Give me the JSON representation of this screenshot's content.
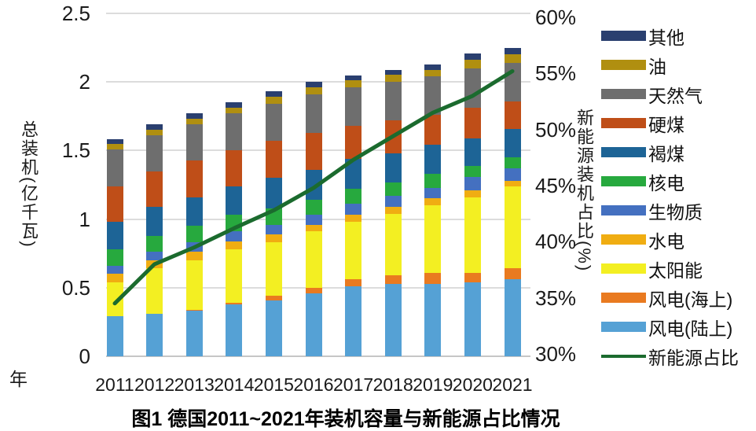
{
  "figure": {
    "caption": "图1  德国2011~2021年装机容量与新能源占比情况"
  },
  "chart_data": {
    "type": "bar",
    "subtype": "stacked-bars-with-line-overlay",
    "title": "图1  德国2011~2021年装机容量与新能源占比情况",
    "categories": [
      "2011",
      "2012",
      "2013",
      "2014",
      "2015",
      "2016",
      "2017",
      "2018",
      "2019",
      "2020",
      "2021"
    ],
    "stack_note": "series listed in legend order (top of bar first); values in 亿千瓦",
    "series": [
      {
        "name": "其他",
        "color": "#2a3f6f",
        "values": [
          0.03,
          0.04,
          0.04,
          0.04,
          0.04,
          0.04,
          0.04,
          0.04,
          0.04,
          0.05,
          0.05
        ]
      },
      {
        "name": "油",
        "color": "#b08f10",
        "values": [
          0.04,
          0.04,
          0.04,
          0.04,
          0.05,
          0.05,
          0.05,
          0.05,
          0.05,
          0.06,
          0.06
        ]
      },
      {
        "name": "天然气",
        "color": "#6e6e6e",
        "values": [
          0.27,
          0.26,
          0.26,
          0.27,
          0.27,
          0.28,
          0.28,
          0.28,
          0.28,
          0.29,
          0.28
        ]
      },
      {
        "name": "硬煤",
        "color": "#bf4e18",
        "values": [
          0.26,
          0.26,
          0.27,
          0.26,
          0.27,
          0.27,
          0.24,
          0.24,
          0.22,
          0.22,
          0.2
        ]
      },
      {
        "name": "褐煤",
        "color": "#1d6496",
        "values": [
          0.2,
          0.21,
          0.21,
          0.21,
          0.22,
          0.22,
          0.22,
          0.21,
          0.21,
          0.2,
          0.21
        ]
      },
      {
        "name": "核电",
        "color": "#27a93e",
        "values": [
          0.12,
          0.12,
          0.12,
          0.12,
          0.12,
          0.11,
          0.11,
          0.1,
          0.1,
          0.08,
          0.08
        ]
      },
      {
        "name": "生物质",
        "color": "#4470c0",
        "values": [
          0.06,
          0.06,
          0.07,
          0.07,
          0.07,
          0.07,
          0.08,
          0.08,
          0.08,
          0.1,
          0.09
        ]
      },
      {
        "name": "水电",
        "color": "#f0ad12",
        "values": [
          0.06,
          0.06,
          0.06,
          0.06,
          0.06,
          0.05,
          0.05,
          0.05,
          0.05,
          0.05,
          0.04
        ]
      },
      {
        "name": "太阳能",
        "color": "#f3ef22",
        "values": [
          0.25,
          0.33,
          0.36,
          0.39,
          0.39,
          0.41,
          0.42,
          0.45,
          0.49,
          0.55,
          0.6
        ]
      },
      {
        "name": "风电(海上)",
        "color": "#e97a20",
        "values": [
          0.0,
          0.0,
          0.01,
          0.01,
          0.03,
          0.04,
          0.05,
          0.06,
          0.08,
          0.07,
          0.08
        ]
      },
      {
        "name": "风电(陆上)",
        "color": "#55a1d5",
        "values": [
          0.29,
          0.31,
          0.33,
          0.38,
          0.41,
          0.46,
          0.51,
          0.53,
          0.53,
          0.54,
          0.56
        ]
      }
    ],
    "bar_totals": [
      1.58,
      1.69,
      1.77,
      1.85,
      1.93,
      2.0,
      2.05,
      2.09,
      2.13,
      2.21,
      2.25
    ],
    "line_series": {
      "name": "新能源占比",
      "color": "#1b6b2e",
      "axis": "right",
      "values_percent": [
        34.5,
        38.0,
        39.5,
        41.2,
        42.8,
        44.8,
        47.3,
        49.4,
        51.5,
        53.0,
        55.2
      ]
    },
    "left_axis": {
      "label": "总装机(亿千瓦)",
      "ticks": [
        "2.5",
        "2",
        "1.5",
        "1",
        "0.5",
        "0"
      ],
      "min": 0,
      "max": 2.5,
      "grid": true
    },
    "right_axis": {
      "label": "新能源装机占比(%)",
      "ticks": [
        "60%",
        "55%",
        "50%",
        "45%",
        "40%",
        "35%",
        "30%"
      ],
      "min": 30,
      "max": 60
    },
    "x_axis": {
      "unit_label": "年"
    },
    "legend_position": "right"
  }
}
